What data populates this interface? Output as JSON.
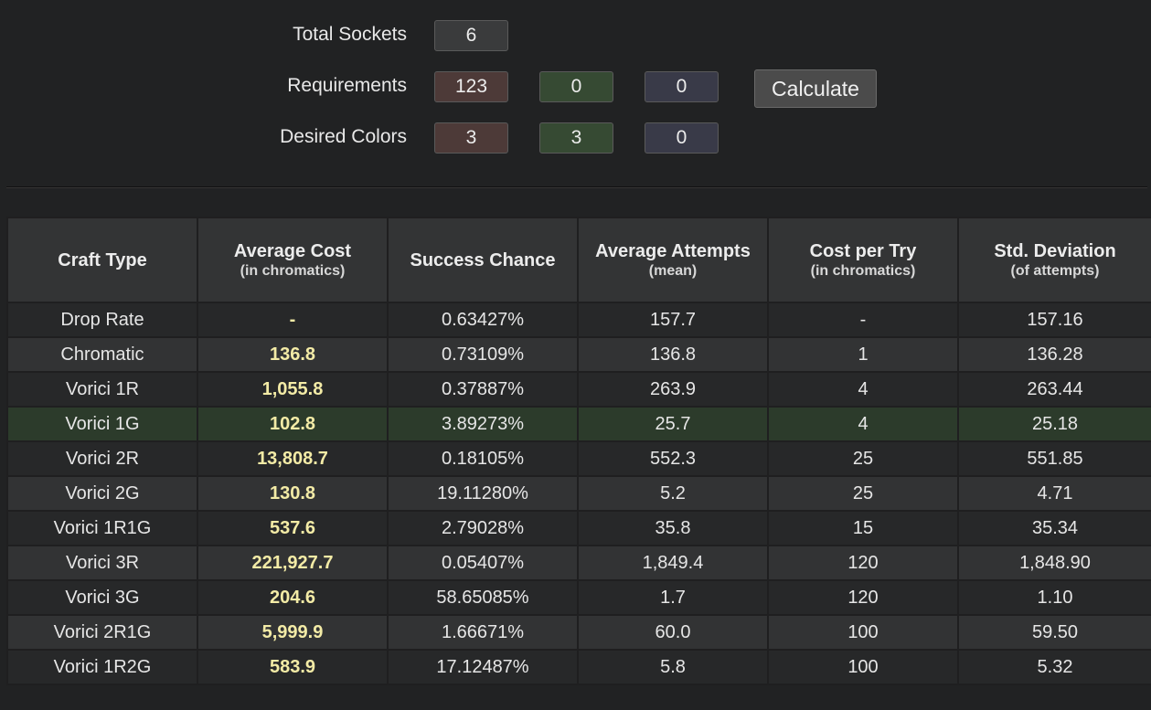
{
  "form": {
    "total_sockets": {
      "label": "Total Sockets",
      "value": "6"
    },
    "requirements": {
      "label": "Requirements",
      "red": "123",
      "green": "0",
      "blue": "0"
    },
    "desired_colors": {
      "label": "Desired Colors",
      "red": "3",
      "green": "3",
      "blue": "0"
    },
    "calculate_label": "Calculate"
  },
  "table": {
    "headers": [
      {
        "title": "Craft Type",
        "sub": ""
      },
      {
        "title": "Average Cost",
        "sub": "(in chromatics)"
      },
      {
        "title": "Success Chance",
        "sub": ""
      },
      {
        "title": "Average Attempts",
        "sub": "(mean)"
      },
      {
        "title": "Cost per Try",
        "sub": "(in chromatics)"
      },
      {
        "title": "Std. Deviation",
        "sub": "(of attempts)"
      }
    ],
    "best_row_index": 3,
    "best_row_color": "#2c3b2b",
    "rows": [
      {
        "craft": "Drop Rate",
        "avg_cost": "-",
        "chance": "0.63427%",
        "attempts": "157.7",
        "cost_per_try": "-",
        "std_dev": "157.16"
      },
      {
        "craft": "Chromatic",
        "avg_cost": "136.8",
        "chance": "0.73109%",
        "attempts": "136.8",
        "cost_per_try": "1",
        "std_dev": "136.28"
      },
      {
        "craft": "Vorici 1R",
        "avg_cost": "1,055.8",
        "chance": "0.37887%",
        "attempts": "263.9",
        "cost_per_try": "4",
        "std_dev": "263.44"
      },
      {
        "craft": "Vorici 1G",
        "avg_cost": "102.8",
        "chance": "3.89273%",
        "attempts": "25.7",
        "cost_per_try": "4",
        "std_dev": "25.18"
      },
      {
        "craft": "Vorici 2R",
        "avg_cost": "13,808.7",
        "chance": "0.18105%",
        "attempts": "552.3",
        "cost_per_try": "25",
        "std_dev": "551.85"
      },
      {
        "craft": "Vorici 2G",
        "avg_cost": "130.8",
        "chance": "19.11280%",
        "attempts": "5.2",
        "cost_per_try": "25",
        "std_dev": "4.71"
      },
      {
        "craft": "Vorici 1R1G",
        "avg_cost": "537.6",
        "chance": "2.79028%",
        "attempts": "35.8",
        "cost_per_try": "15",
        "std_dev": "35.34"
      },
      {
        "craft": "Vorici 3R",
        "avg_cost": "221,927.7",
        "chance": "0.05407%",
        "attempts": "1,849.4",
        "cost_per_try": "120",
        "std_dev": "1,848.90"
      },
      {
        "craft": "Vorici 3G",
        "avg_cost": "204.6",
        "chance": "58.65085%",
        "attempts": "1.7",
        "cost_per_try": "120",
        "std_dev": "1.10"
      },
      {
        "craft": "Vorici 2R1G",
        "avg_cost": "5,999.9",
        "chance": "1.66671%",
        "attempts": "60.0",
        "cost_per_try": "100",
        "std_dev": "59.50"
      },
      {
        "craft": "Vorici 1R2G",
        "avg_cost": "583.9",
        "chance": "17.12487%",
        "attempts": "5.8",
        "cost_per_try": "100",
        "std_dev": "5.32"
      }
    ]
  }
}
